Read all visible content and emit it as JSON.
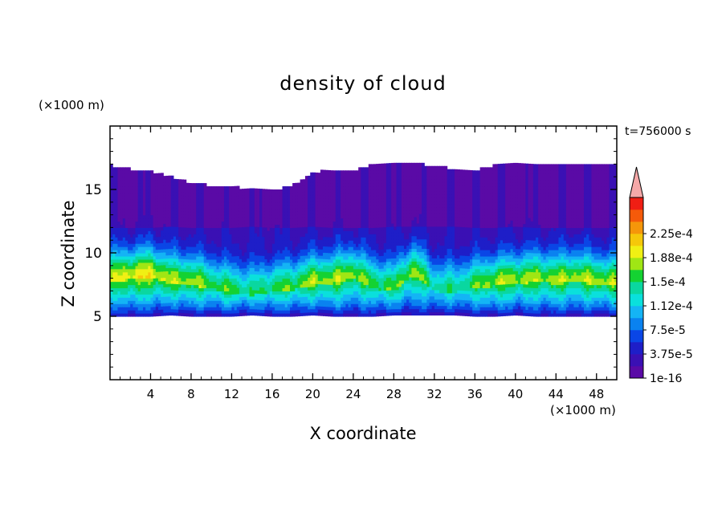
{
  "chart_data": {
    "type": "heatmap",
    "title": "density of cloud",
    "xlabel": "X coordinate",
    "ylabel": "Z coordinate",
    "x_unit": "(×1000 m)",
    "y_unit": "(×1000 m)",
    "time_label": "t=756000 s",
    "xlim": [
      0,
      50
    ],
    "ylim": [
      0,
      20
    ],
    "x_ticks": [
      4,
      8,
      12,
      16,
      20,
      24,
      28,
      32,
      36,
      40,
      44,
      48
    ],
    "y_ticks": [
      5,
      10,
      15
    ],
    "colorbar": {
      "labels": [
        "1e-16",
        "3.75e-5",
        "7.5e-5",
        "1.12e-4",
        "1.5e-4",
        "1.88e-4",
        "2.25e-4"
      ],
      "colors": [
        "#5a0aa6",
        "#3a10b4",
        "#1e1ec8",
        "#0a46e6",
        "#0a82f0",
        "#14b4f5",
        "#0ae0dc",
        "#0ad7a0",
        "#14d232",
        "#a0e614",
        "#f0f014",
        "#f5c80a",
        "#f5960a",
        "#f55a0a",
        "#f01e14"
      ],
      "extend_color": "#f5a8a8"
    },
    "cloud_profile": {
      "x": [
        0,
        2,
        4,
        6,
        8,
        10,
        12,
        14,
        16,
        18,
        20,
        22,
        24,
        26,
        28,
        30,
        32,
        34,
        36,
        38,
        40,
        42,
        44,
        46,
        48,
        50
      ],
      "base_z": [
        5.0,
        5.0,
        5.0,
        5.1,
        5.0,
        5.0,
        5.0,
        5.1,
        5.0,
        5.0,
        5.1,
        5.0,
        5.0,
        5.0,
        5.1,
        5.1,
        5.1,
        5.1,
        5.0,
        5.0,
        5.1,
        5.0,
        5.0,
        5.0,
        5.0,
        5.0
      ],
      "top_z": [
        16.8,
        16.5,
        16.3,
        15.9,
        15.4,
        15.2,
        15.1,
        14.9,
        14.8,
        15.2,
        16.2,
        16.5,
        16.4,
        16.9,
        17.0,
        16.9,
        16.8,
        16.5,
        16.4,
        16.8,
        16.9,
        16.8,
        16.9,
        17.0,
        17.0,
        17.0
      ],
      "peak_z": [
        7.8,
        7.9,
        8.1,
        7.6,
        7.5,
        7.2,
        6.8,
        6.7,
        6.9,
        7.1,
        7.5,
        7.6,
        8.0,
        7.2,
        7.0,
        8.3,
        7.0,
        6.9,
        7.2,
        7.4,
        7.6,
        7.7,
        7.6,
        7.8,
        7.5,
        7.4
      ],
      "peak_level": [
        8,
        9,
        9,
        8,
        8,
        7,
        7,
        6,
        7,
        7,
        8,
        8,
        8,
        7,
        7,
        8,
        6,
        6,
        7,
        8,
        8,
        8,
        8,
        8,
        8,
        8
      ]
    }
  }
}
